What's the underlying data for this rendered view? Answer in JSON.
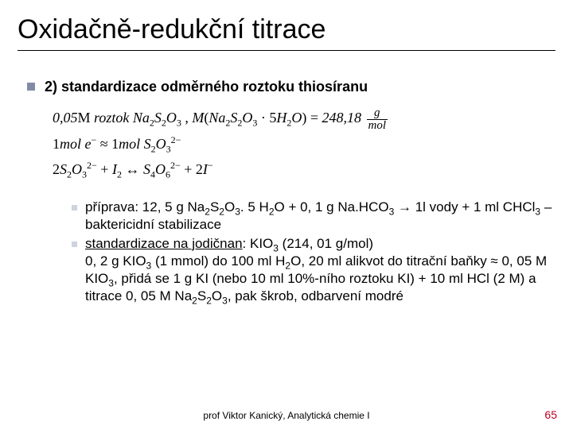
{
  "title": "Oxidačně-redukční titrace",
  "subheading": "2) standardizace odměrného roztoku thiosíranu",
  "formulas": {
    "line1_a": "0,05",
    "line1_b": "roztok Na",
    "line1_c": "248,18",
    "line2": "1",
    "line3_arrow": "↔"
  },
  "sub1": {
    "lead": "příprava: 12, 5 g Na",
    "mid": ". 5 H",
    "after": "O + 0, 1 g Na.HCO",
    "tail1": " → 1l vody + 1 ml CHCl",
    "tail2": " – baktericidní stabilizace"
  },
  "sub2": {
    "u": "standardizace na jodičnan",
    "a": ": KIO",
    "b": " (214, 01 g/mol)",
    "c": "0, 2 g KIO",
    "d": " (1 mmol) do 100 ml H",
    "e": "O, 20 ml alikvot do titrační baňky ≈ 0, 05 M KIO",
    "f": ", přidá se 1 g KI (nebo 10 ml 10%-ního roztoku KI) + 10 ml HCl (2 M) a titrace 0, 05 M Na",
    "g": ", pak škrob, odbarvení modré"
  },
  "footer": "prof Viktor Kanický, Analytická chemie I",
  "pagenum": "65",
  "colors": {
    "bullet_main": "#818ca3",
    "bullet_sub": "#cdd4df",
    "pagenum": "#b90023"
  }
}
